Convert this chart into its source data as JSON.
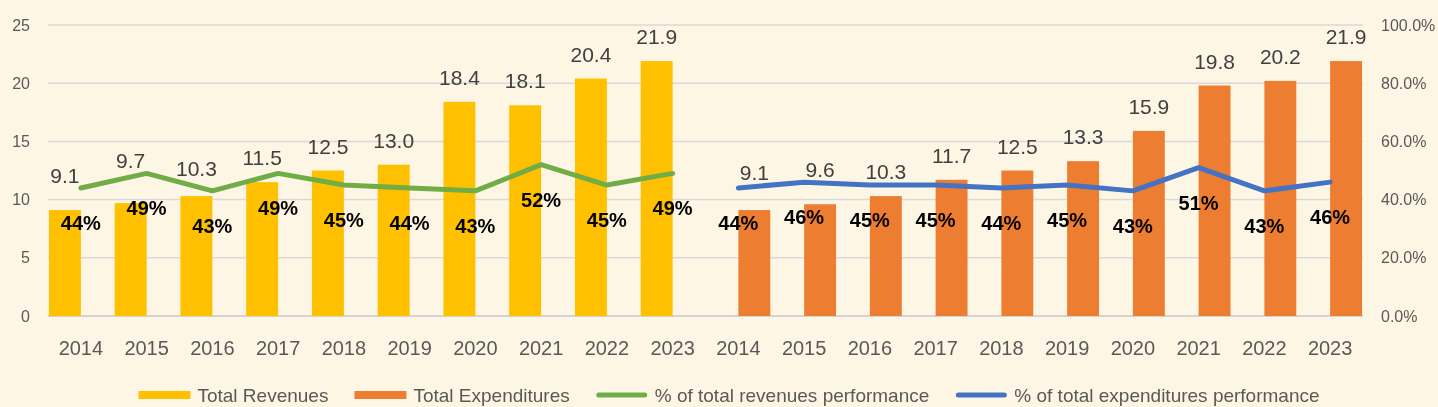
{
  "chart_data": {
    "type": "bar",
    "categories": [
      "2014",
      "2015",
      "2016",
      "2017",
      "2018",
      "2019",
      "2020",
      "2021",
      "2022",
      "2023",
      "2014",
      "2015",
      "2016",
      "2017",
      "2018",
      "2019",
      "2020",
      "2021",
      "2022",
      "2023"
    ],
    "series": [
      {
        "name": "Total Revenues",
        "color": "#ffc000",
        "values": [
          9.1,
          9.7,
          10.3,
          11.5,
          12.5,
          13.0,
          18.4,
          18.1,
          20.4,
          21.9,
          null,
          null,
          null,
          null,
          null,
          null,
          null,
          null,
          null,
          null
        ],
        "value_labels": [
          "9.1",
          "9.7",
          "10.3",
          "11.5",
          "12.5",
          "13.0",
          "18.4",
          "18.1",
          "20.4",
          "21.9",
          null,
          null,
          null,
          null,
          null,
          null,
          null,
          null,
          null,
          null
        ]
      },
      {
        "name": "Total Expenditures",
        "color": "#ed7d31",
        "values": [
          null,
          null,
          null,
          null,
          null,
          null,
          null,
          null,
          null,
          null,
          9.1,
          9.6,
          10.3,
          11.7,
          12.5,
          13.3,
          15.9,
          19.8,
          20.2,
          21.9
        ],
        "value_labels": [
          null,
          null,
          null,
          null,
          null,
          null,
          null,
          null,
          null,
          null,
          "9.1",
          "9.6",
          "10.3",
          "11.7",
          "12.5",
          "13.3",
          "15.9",
          "19.8",
          "20.2",
          "21.9"
        ]
      },
      {
        "name": "% of total revenues performance",
        "type": "line",
        "axis": "y2",
        "color": "#70ad47",
        "values": [
          44,
          49,
          43,
          49,
          45,
          44,
          43,
          52,
          45,
          49,
          null,
          null,
          null,
          null,
          null,
          null,
          null,
          null,
          null,
          null
        ],
        "value_labels": [
          "44%",
          "49%",
          "43%",
          "49%",
          "45%",
          "44%",
          "43%",
          "52%",
          "45%",
          "49%",
          null,
          null,
          null,
          null,
          null,
          null,
          null,
          null,
          null,
          null
        ]
      },
      {
        "name": "% of total expenditures performance",
        "type": "line",
        "axis": "y2",
        "color": "#4472c4",
        "values": [
          null,
          null,
          null,
          null,
          null,
          null,
          null,
          null,
          null,
          null,
          44,
          46,
          45,
          45,
          44,
          45,
          43,
          51,
          43,
          46
        ],
        "value_labels": [
          null,
          null,
          null,
          null,
          null,
          null,
          null,
          null,
          null,
          null,
          "44%",
          "46%",
          "45%",
          "45%",
          "44%",
          "45%",
          "43%",
          "51%",
          "43%",
          "46%"
        ]
      }
    ],
    "ylim": [
      0,
      25
    ],
    "yticks": [
      0,
      5,
      10,
      15,
      20,
      25
    ],
    "y2lim": [
      0,
      100
    ],
    "y2ticks": [
      {
        "value": 0,
        "label": "0.0%"
      },
      {
        "value": 20,
        "label": "20.0%"
      },
      {
        "value": 40,
        "label": "40.0%"
      },
      {
        "value": 60,
        "label": "60.0%"
      },
      {
        "value": 80,
        "label": "80.0%"
      },
      {
        "value": 100,
        "label": "100.0%"
      }
    ],
    "grid": "y",
    "legend": "bottom"
  }
}
